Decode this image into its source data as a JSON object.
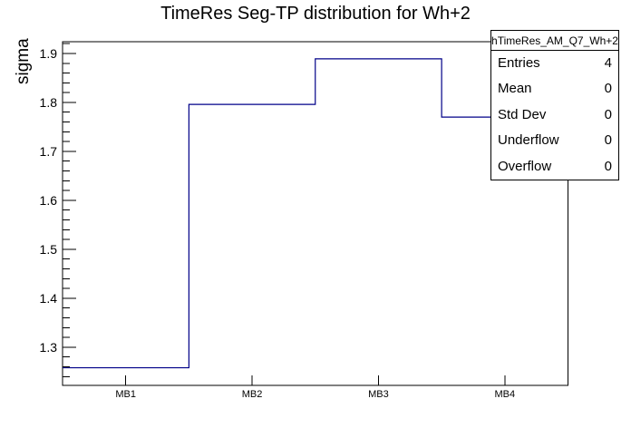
{
  "chart_data": {
    "type": "line",
    "subtype": "step-histogram",
    "title": "TimeRes Seg-TP distribution for Wh+2",
    "categories": [
      "MB1",
      "MB2",
      "MB3",
      "MB4"
    ],
    "values": [
      1.258,
      1.796,
      1.889,
      1.77
    ],
    "xlabel": "",
    "ylabel": "sigma",
    "ylim": [
      1.222,
      1.924
    ],
    "y_major_tick_start": 1.3,
    "y_major_tick_end": 1.9,
    "y_major_tick_step": 0.1,
    "y_minor_tick_step": 0.02,
    "y_tick_labels": [
      "1.3",
      "1.4",
      "1.5",
      "1.6",
      "1.7",
      "1.8",
      "1.9"
    ],
    "grid": false,
    "legend_position": "none",
    "line_color": "#000088",
    "axis_color": "#000000",
    "background_color": "#ffffff"
  },
  "stats_box": {
    "header": "hTimeRes_AM_Q7_Wh+2",
    "rows": [
      {
        "label": "Entries",
        "value": "4"
      },
      {
        "label": "Mean",
        "value": "0"
      },
      {
        "label": "Std Dev",
        "value": "0"
      },
      {
        "label": "Underflow",
        "value": "0"
      },
      {
        "label": "Overflow",
        "value": "0"
      }
    ]
  }
}
